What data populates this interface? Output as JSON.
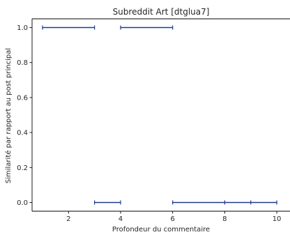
{
  "chart_data": {
    "type": "line",
    "title": "Subreddit Art [dtglua7]",
    "xlabel": "Profondeur du commentaire",
    "ylabel": "Similarité par rapport au post principal",
    "xlim": [
      0.6,
      10.4
    ],
    "ylim": [
      -0.05,
      1.05
    ],
    "xticks": [
      2,
      4,
      6,
      8,
      10
    ],
    "yticks": [
      0.0,
      0.2,
      0.4,
      0.6,
      0.8,
      1.0
    ],
    "ytick_labels": [
      "0.0",
      "0.2",
      "0.4",
      "0.6",
      "0.8",
      "1.0"
    ],
    "grid": false,
    "legend": "none",
    "series_color": "#1f3a8f",
    "segments": [
      {
        "x": [
          1,
          3
        ],
        "y": 1.0
      },
      {
        "x": [
          4,
          6
        ],
        "y": 1.0
      },
      {
        "x": [
          3,
          4
        ],
        "y": 0.0
      },
      {
        "x": [
          6,
          10
        ],
        "y": 0.0
      }
    ],
    "markers": [
      {
        "x": 1,
        "y": 1.0
      },
      {
        "x": 3,
        "y": 1.0
      },
      {
        "x": 4,
        "y": 1.0
      },
      {
        "x": 6,
        "y": 1.0
      },
      {
        "x": 3,
        "y": 0.0
      },
      {
        "x": 4,
        "y": 0.0
      },
      {
        "x": 6,
        "y": 0.0
      },
      {
        "x": 8,
        "y": 0.0
      },
      {
        "x": 9,
        "y": 0.0
      },
      {
        "x": 10,
        "y": 0.0
      }
    ]
  }
}
